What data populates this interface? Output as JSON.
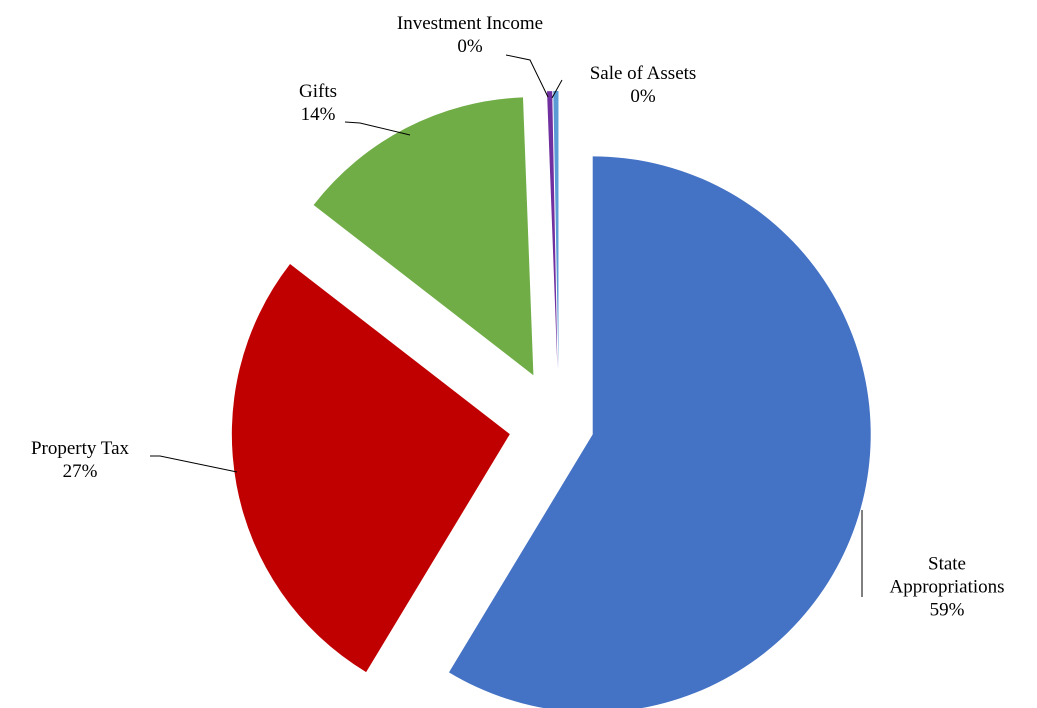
{
  "chart_data": {
    "type": "pie",
    "categories": [
      "State Appropriations",
      "Property Tax",
      "Gifts",
      "Investment Income",
      "Sale of Assets"
    ],
    "values": [
      59,
      27,
      14,
      0.3,
      0.3
    ],
    "value_labels": [
      "59%",
      "27%",
      "14%",
      "0%",
      "0%"
    ],
    "colors": [
      "#4472c4",
      "#c00000",
      "#70ad47",
      "#7030a0",
      "#5b9bd5"
    ]
  }
}
